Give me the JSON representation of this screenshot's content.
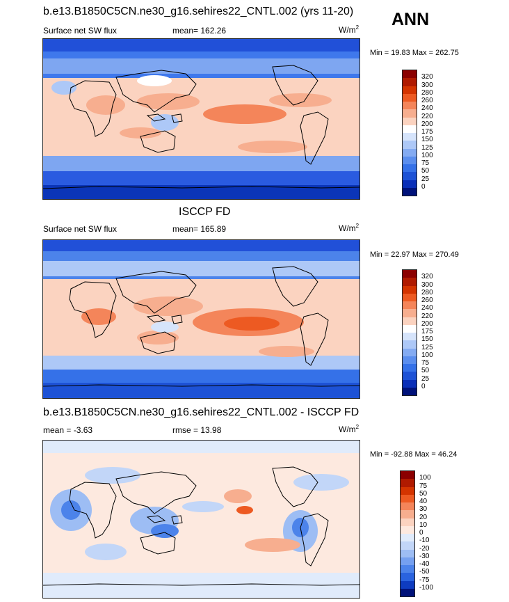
{
  "season": "ANN",
  "panels": [
    {
      "title": "b.e13.B1850C5CN.ne30_g16.sehires22_CNTL.002 (yrs 11-20)",
      "left_label": "Surface net SW flux",
      "center_label": "mean= 162.26",
      "units_base": "W/m",
      "units_exp": "2",
      "minmax": "Min =  19.83 Max = 262.75",
      "colorbar_labels": [
        "320",
        "300",
        "280",
        "260",
        "240",
        "220",
        "200",
        "175",
        "150",
        "125",
        "100",
        "75",
        "50",
        "25",
        "0"
      ],
      "colorbar_colors": [
        "#8b0000",
        "#b01a00",
        "#d43400",
        "#ed5a22",
        "#f4855a",
        "#f7ae8f",
        "#fbd3c0",
        "#ffffff",
        "#d6e4fb",
        "#adc8f7",
        "#84abf2",
        "#5b8eee",
        "#3571e8",
        "#1d52d6",
        "#0a2fb8",
        "#00127a"
      ]
    },
    {
      "title": "ISCCP FD",
      "left_label": "Surface net SW flux",
      "center_label": "mean= 165.89",
      "units_base": "W/m",
      "units_exp": "2",
      "minmax": "Min =  22.97 Max = 270.49",
      "colorbar_labels": [
        "320",
        "300",
        "280",
        "260",
        "240",
        "220",
        "200",
        "175",
        "150",
        "125",
        "100",
        "75",
        "50",
        "25",
        "0"
      ],
      "colorbar_colors": [
        "#8b0000",
        "#b01a00",
        "#d43400",
        "#ed5a22",
        "#f4855a",
        "#f7ae8f",
        "#fbd3c0",
        "#ffffff",
        "#d6e4fb",
        "#adc8f7",
        "#84abf2",
        "#5b8eee",
        "#3571e8",
        "#1d52d6",
        "#0a2fb8",
        "#00127a"
      ]
    },
    {
      "title": "b.e13.B1850C5CN.ne30_g16.sehires22_CNTL.002 - ISCCP FD",
      "left_label": "mean =  -3.63",
      "center_label": "rmse =  13.98",
      "units_base": "W/m",
      "units_exp": "2",
      "minmax": "Min = -92.88 Max =  46.24",
      "colorbar_labels": [
        "100",
        "75",
        "50",
        "40",
        "30",
        "20",
        "10",
        "0",
        "-10",
        "-20",
        "-30",
        "-40",
        "-50",
        "-75",
        "-100"
      ],
      "colorbar_colors": [
        "#8b0000",
        "#b01a00",
        "#d43400",
        "#ed5a22",
        "#f4855a",
        "#f7ae8f",
        "#fbd3c0",
        "#fde9df",
        "#e0ebfb",
        "#c2d6f8",
        "#9dbdf4",
        "#75a0f0",
        "#4c83ea",
        "#2a63df",
        "#0e3cc0",
        "#00127a"
      ]
    }
  ]
}
